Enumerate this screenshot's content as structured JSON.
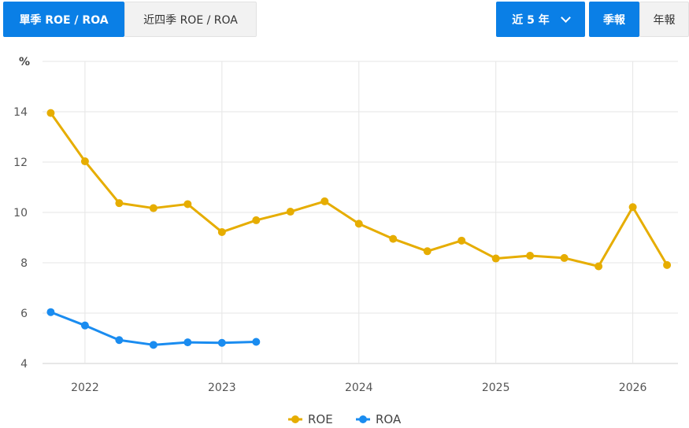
{
  "tabs": {
    "single_label": "單季 ROE / ROA",
    "four_label": "近四季 ROE / ROA"
  },
  "controls": {
    "range_label": "近 5 年",
    "quarterly_label": "季報",
    "annual_label": "年報"
  },
  "colors": {
    "accent": "#0a7fe6",
    "roe": "#e6ad00",
    "roa": "#1a8cf0"
  },
  "chart_data": {
    "type": "line",
    "unit_label": "%",
    "ylim": [
      4,
      16
    ],
    "yticks": [
      4,
      6,
      8,
      10,
      12,
      14
    ],
    "xlim": [
      2021.69,
      2026.33
    ],
    "xticks": [
      {
        "label": "2022",
        "pos": 2022.0
      },
      {
        "label": "2023",
        "pos": 2023.0
      },
      {
        "label": "2024",
        "pos": 2024.0
      },
      {
        "label": "2025",
        "pos": 2025.0
      },
      {
        "label": "2026",
        "pos": 2026.0
      }
    ],
    "grid": true,
    "legend_position": "bottom-center",
    "series": [
      {
        "name": "ROE",
        "color": "#e6ad00",
        "x": [
          2021.75,
          2022.0,
          2022.25,
          2022.5,
          2022.75,
          2023.0,
          2023.25,
          2023.5,
          2023.75,
          2024.0,
          2024.25,
          2024.5,
          2024.75,
          2025.0,
          2025.25,
          2025.5,
          2025.75,
          2026.0,
          2026.25
        ],
        "values": [
          13.95,
          12.03,
          10.37,
          10.17,
          10.33,
          9.22,
          9.69,
          10.03,
          10.44,
          9.55,
          8.95,
          8.46,
          8.88,
          8.17,
          8.28,
          8.19,
          7.86,
          10.21,
          7.91
        ]
      },
      {
        "name": "ROA",
        "color": "#1a8cf0",
        "x": [
          2021.75,
          2022.0,
          2022.25,
          2022.5,
          2022.75,
          2023.0,
          2023.25
        ],
        "values": [
          6.04,
          5.51,
          4.93,
          4.74,
          4.84,
          4.82,
          4.86
        ]
      }
    ]
  }
}
